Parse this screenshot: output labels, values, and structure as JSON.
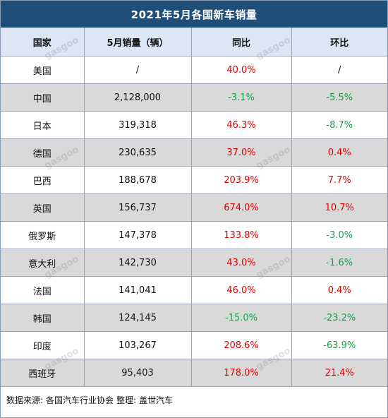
{
  "title": "2021年5月各国新车销量",
  "headers": [
    "国家",
    "5月销量（辆）",
    "同比",
    "环比"
  ],
  "rows": [
    {
      "country": "美国",
      "sales": "/",
      "yoy": "40.0%",
      "mom": "/"
    },
    {
      "country": "中国",
      "sales": "2,128,000",
      "yoy": "-3.1%",
      "mom": "-5.5%"
    },
    {
      "country": "日本",
      "sales": "319,318",
      "yoy": "46.3%",
      "mom": "-8.7%"
    },
    {
      "country": "德国",
      "sales": "230,635",
      "yoy": "37.0%",
      "mom": "0.4%"
    },
    {
      "country": "巴西",
      "sales": "188,678",
      "yoy": "203.9%",
      "mom": "7.7%"
    },
    {
      "country": "英国",
      "sales": "156,737",
      "yoy": "674.0%",
      "mom": "10.7%"
    },
    {
      "country": "俄罗斯",
      "sales": "147,378",
      "yoy": "133.8%",
      "mom": "-3.0%"
    },
    {
      "country": "意大利",
      "sales": "142,730",
      "yoy": "43.0%",
      "mom": "-1.6%"
    },
    {
      "country": "法国",
      "sales": "141,041",
      "yoy": "46.0%",
      "mom": "0.4%"
    },
    {
      "country": "韩国",
      "sales": "124,145",
      "yoy": "-15.0%",
      "mom": "-23.2%"
    },
    {
      "country": "印度",
      "sales": "103,267",
      "yoy": "208.6%",
      "mom": "-63.9%"
    },
    {
      "country": "西班牙",
      "sales": "95,403",
      "yoy": "178.0%",
      "mom": "21.4%"
    }
  ],
  "footer": {
    "source_label": "数据来源:",
    "source_value": "各国汽车行业协会",
    "compiled_label": "整理:",
    "compiled_value": "盖世汽车"
  },
  "colors": {
    "title_bg": "#1f4e79",
    "header_bg": "#dce6f4",
    "shaded_row_bg": "#d9d9d9",
    "positive": "#e00000",
    "negative": "#12a34a"
  },
  "watermark": {
    "text": "gasgoo",
    "subtext": "盖世汽车",
    "url": "auto.gasgoo.com"
  }
}
